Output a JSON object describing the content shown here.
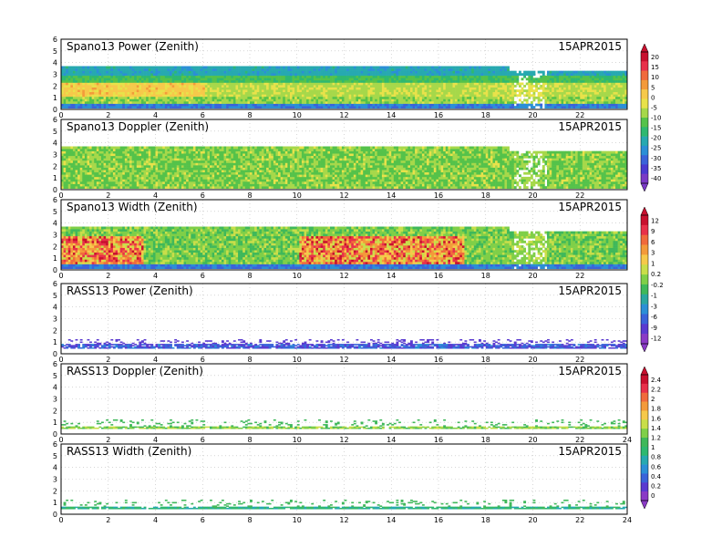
{
  "chart_data": [
    {
      "type": "heatmap",
      "title": "Spano13 Power (Zenith)",
      "date": "15APR2015",
      "xlim": [
        0,
        24
      ],
      "ylim": [
        0,
        6
      ],
      "xticks": [
        "0",
        "2",
        "4",
        "6",
        "8",
        "10",
        "12",
        "14",
        "16",
        "18",
        "20",
        "22"
      ],
      "yticks": [
        "0",
        "1",
        "2",
        "3",
        "4",
        "5",
        "6"
      ],
      "x_sampling": {
        "start": 0,
        "end": 24,
        "step": 0.1
      },
      "y_sampling": {
        "start": 0.2,
        "end": 4.0,
        "step": 0.2
      },
      "top_height_approx": {
        "default": 3.7,
        "after_19h": 3.2
      },
      "colorbar_id": "cb1",
      "field_pattern": "layered_power"
    },
    {
      "type": "heatmap",
      "title": "Spano13 Doppler (Zenith)",
      "date": "15APR2015",
      "xlim": [
        0,
        24
      ],
      "ylim": [
        0,
        6
      ],
      "xticks": [
        "0",
        "2",
        "4",
        "6",
        "8",
        "10",
        "12",
        "14",
        "16",
        "18",
        "20",
        "22"
      ],
      "yticks": [
        "0",
        "1",
        "2",
        "3",
        "4",
        "5",
        "6"
      ],
      "x_sampling": {
        "start": 0,
        "end": 24,
        "step": 0.1
      },
      "y_sampling": {
        "start": 0.2,
        "end": 4.0,
        "step": 0.2
      },
      "top_height_approx": {
        "default": 3.7,
        "after_19h": 3.2
      },
      "colorbar_id": "cb1",
      "field_pattern": "mostly_green"
    },
    {
      "type": "heatmap",
      "title": "Spano13 Width (Zenith)",
      "date": "15APR2015",
      "xlim": [
        0,
        24
      ],
      "ylim": [
        0,
        6
      ],
      "xticks": [
        "0",
        "2",
        "4",
        "6",
        "8",
        "10",
        "12",
        "14",
        "16",
        "18",
        "20",
        "22"
      ],
      "yticks": [
        "0",
        "1",
        "2",
        "3",
        "4",
        "5",
        "6"
      ],
      "x_sampling": {
        "start": 0,
        "end": 24,
        "step": 0.1
      },
      "y_sampling": {
        "start": 0.2,
        "end": 4.0,
        "step": 0.2
      },
      "top_height_approx": {
        "default": 3.7,
        "after_19h": 3.2
      },
      "colorbar_id": "cb2",
      "field_pattern": "width_hot_low"
    },
    {
      "type": "heatmap",
      "title": "RASS13 Power (Zenith)",
      "date": "15APR2015",
      "xlim": [
        0,
        24
      ],
      "ylim": [
        0,
        6
      ],
      "xticks": [
        "0",
        "2",
        "4",
        "6",
        "8",
        "10",
        "12",
        "14",
        "16",
        "18",
        "20",
        "22"
      ],
      "yticks": [
        "0",
        "1",
        "2",
        "3",
        "4",
        "5",
        "6"
      ],
      "x_sampling": {
        "start": 0,
        "end": 24,
        "step": 0.1
      },
      "y_sampling": {
        "start": 0.5,
        "end": 1.2,
        "step": 0.1
      },
      "colorbar_id": "cb2",
      "field_pattern": "rass_power"
    },
    {
      "type": "heatmap",
      "title": "RASS13 Doppler (Zenith)",
      "date": "15APR2015",
      "xlim": [
        0,
        24
      ],
      "ylim": [
        0,
        6
      ],
      "xticks": [
        "0",
        "2",
        "4",
        "6",
        "8",
        "10",
        "12",
        "14",
        "16",
        "18",
        "20",
        "22",
        "24"
      ],
      "yticks": [
        "0",
        "1",
        "2",
        "3",
        "4",
        "5",
        "6"
      ],
      "x_sampling": {
        "start": 0,
        "end": 24,
        "step": 0.1
      },
      "y_sampling": {
        "start": 0.5,
        "end": 1.2,
        "step": 0.1
      },
      "colorbar_id": "cb3",
      "field_pattern": "rass_doppler"
    },
    {
      "type": "heatmap",
      "title": "RASS13 Width (Zenith)",
      "date": "15APR2015",
      "xlim": [
        0,
        24
      ],
      "ylim": [
        0,
        6
      ],
      "xticks": [
        "0",
        "2",
        "4",
        "6",
        "8",
        "10",
        "12",
        "14",
        "16",
        "18",
        "20",
        "22",
        "24"
      ],
      "yticks": [
        "0",
        "1",
        "2",
        "3",
        "4",
        "5",
        "6"
      ],
      "x_sampling": {
        "start": 0,
        "end": 24,
        "step": 0.1
      },
      "y_sampling": {
        "start": 0.5,
        "end": 1.2,
        "step": 0.1
      },
      "colorbar_id": "cb3",
      "field_pattern": "rass_width"
    }
  ],
  "colorbars": [
    {
      "id": "cb1",
      "labels": [
        "20",
        "15",
        "10",
        "5",
        "0",
        "-5",
        "-10",
        "-15",
        "-20",
        "-25",
        "-30",
        "-35",
        "-40"
      ],
      "colors": [
        "#c8102e",
        "#e8304a",
        "#f06a3c",
        "#f39a3a",
        "#f6c94a",
        "#e8e24a",
        "#a6d84a",
        "#55c24a",
        "#2fb870",
        "#27a9b0",
        "#2b8fd6",
        "#3a63d9",
        "#4a3ad0",
        "#7a3ac6"
      ]
    },
    {
      "id": "cb2",
      "labels": [
        "12",
        "9",
        "6",
        "3",
        "1",
        "0.2",
        "-0.2",
        "-1",
        "-3",
        "-6",
        "-9",
        "-12"
      ],
      "colors": [
        "#c8102e",
        "#e8304a",
        "#f06a3c",
        "#f39a3a",
        "#f6c94a",
        "#c9de4a",
        "#7fcf48",
        "#3fb85a",
        "#2aa7a0",
        "#2b8fd6",
        "#3a63d9",
        "#5a3ad0",
        "#8a3ac6"
      ]
    },
    {
      "id": "cb3",
      "labels": [
        "2.4",
        "2.2",
        "2",
        "1.8",
        "1.6",
        "1.4",
        "1.2",
        "1",
        "0.8",
        "0.6",
        "0.4",
        "0.2",
        "0"
      ],
      "colors": [
        "#c8102e",
        "#e8304a",
        "#f06a3c",
        "#f39a3a",
        "#f6c94a",
        "#c9de4a",
        "#7fcf48",
        "#3fb85a",
        "#2fb870",
        "#27a9b0",
        "#2b8fd6",
        "#3a63d9",
        "#5a3ad0",
        "#8a3ac6"
      ]
    }
  ]
}
